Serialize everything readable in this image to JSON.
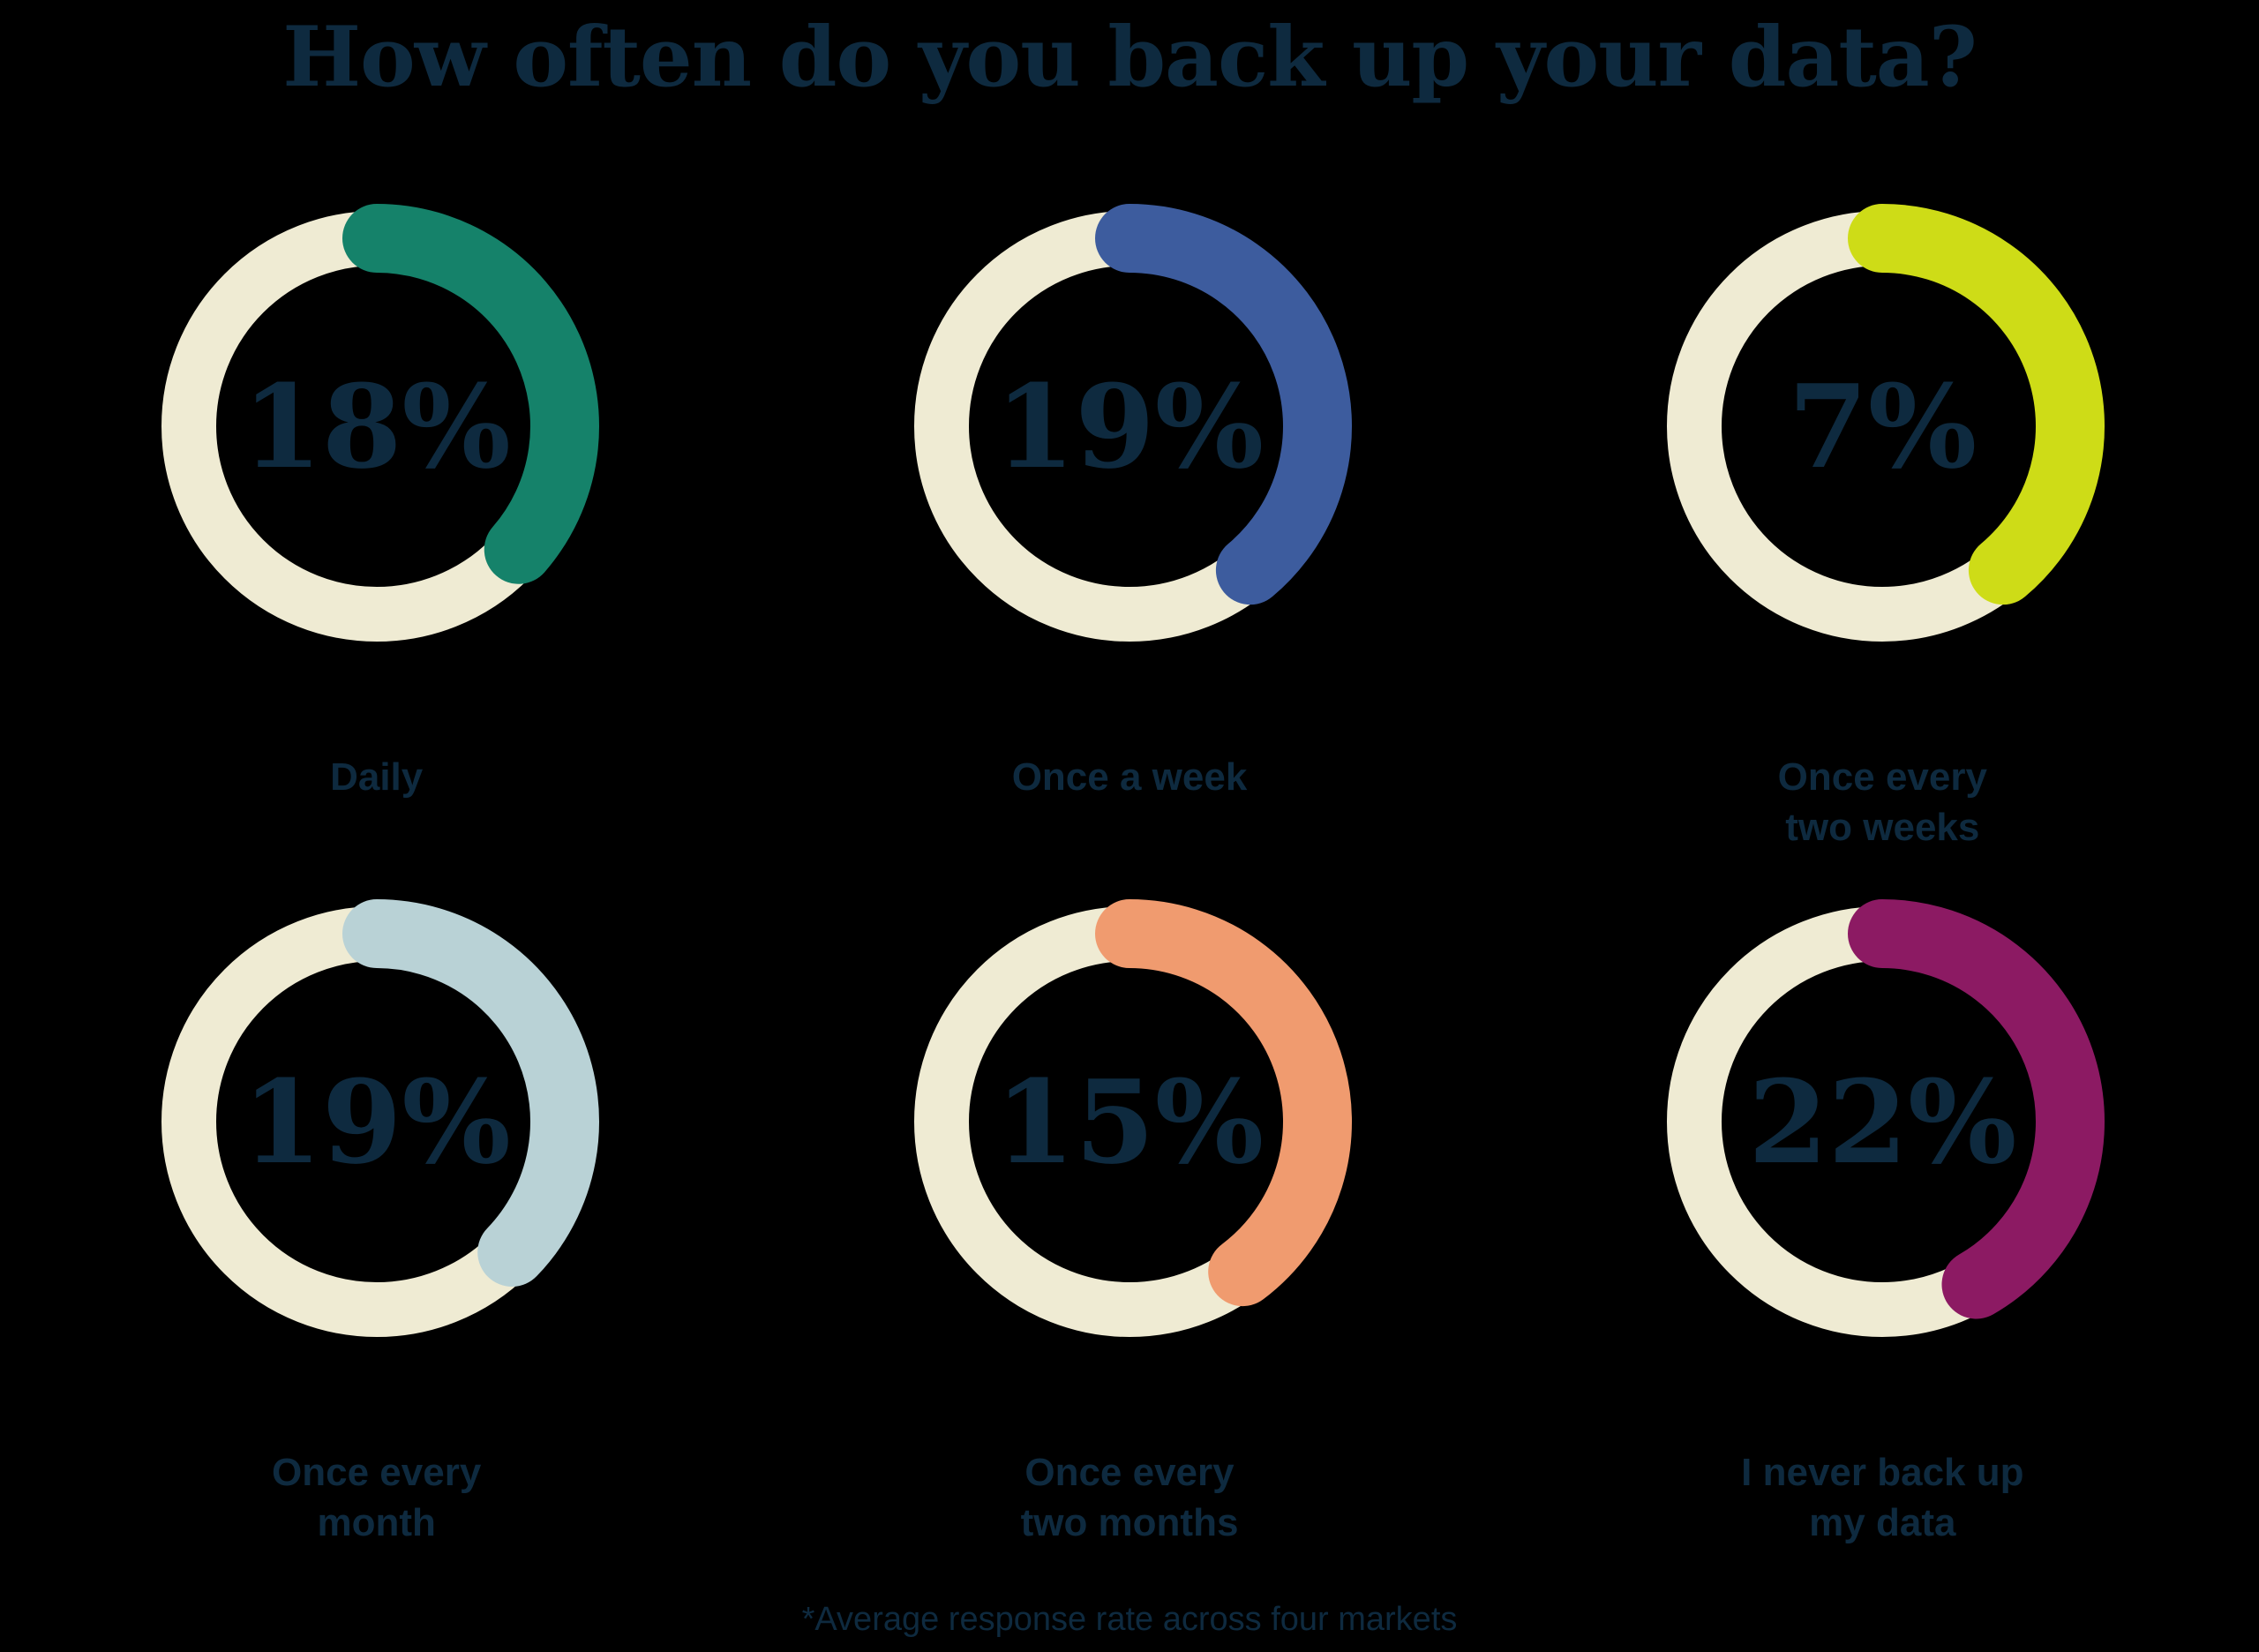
{
  "title": "How often do you back up your data?",
  "footnote": "*Average response rate across four markets",
  "colors": {
    "background": "#000000",
    "text": "#0e2a3f",
    "ring_track": "#efebd3"
  },
  "chart_data": {
    "type": "donut-grid",
    "question": "How often do you back up your data?",
    "unit": "percent",
    "layout": {
      "columns": 3,
      "rows": 2,
      "arc_start_reference": "12-o-clock, clockwise",
      "arc_angles_decorative": true,
      "track_color": "#efebd3"
    },
    "items": [
      {
        "label": "Daily",
        "value": 18,
        "display_value": "18%",
        "arc_color": "#15826a",
        "arc_start_deg": 0,
        "arc_end_deg": 131
      },
      {
        "label": "Once a week",
        "value": 19,
        "display_value": "19%",
        "arc_color": "#3d5c9e",
        "arc_start_deg": 0,
        "arc_end_deg": 140
      },
      {
        "label": "Once every\ntwo weeks",
        "value": 7,
        "display_value": "7%",
        "arc_color": "#cedc17",
        "arc_start_deg": 0,
        "arc_end_deg": 140
      },
      {
        "label": "Once every\nmonth",
        "value": 19,
        "display_value": "19%",
        "arc_color": "#b9d2d6",
        "arc_start_deg": 0,
        "arc_end_deg": 134
      },
      {
        "label": "Once every\ntwo months",
        "value": 15,
        "display_value": "15%",
        "arc_color": "#f09b6f",
        "arc_start_deg": 0,
        "arc_end_deg": 143
      },
      {
        "label": "I never back up\nmy data",
        "value": 22,
        "display_value": "22%",
        "arc_color": "#8c1a63",
        "arc_start_deg": 0,
        "arc_end_deg": 150
      }
    ],
    "note": "*Average response rate across four markets"
  }
}
